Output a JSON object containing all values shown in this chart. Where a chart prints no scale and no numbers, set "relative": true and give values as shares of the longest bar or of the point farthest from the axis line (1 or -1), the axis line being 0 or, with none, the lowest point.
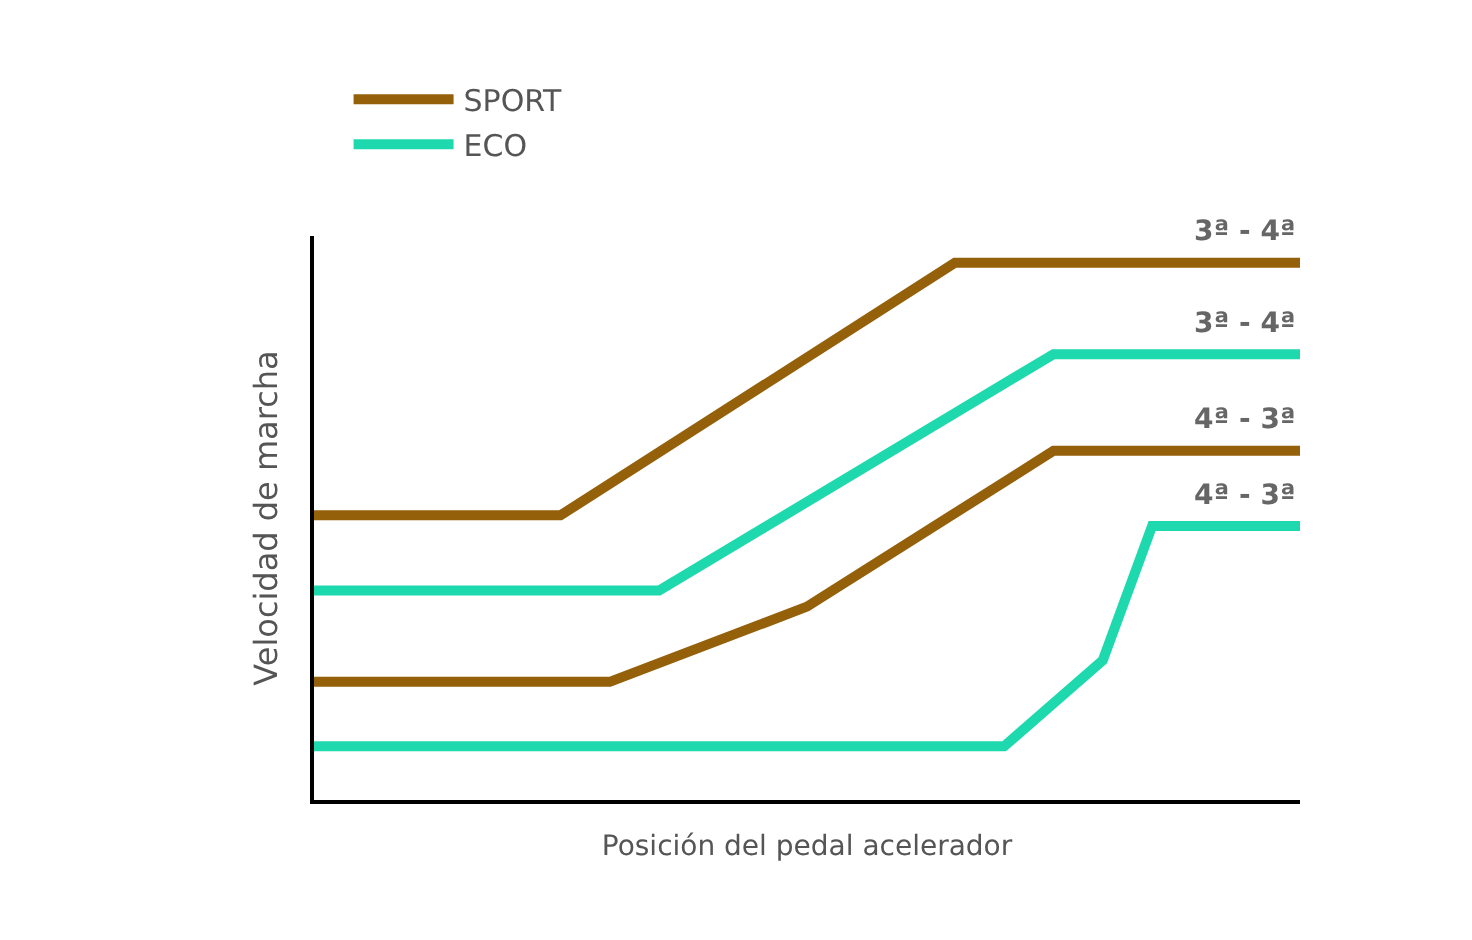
{
  "chart_data": {
    "type": "line",
    "relative": true,
    "xlabel": "Posición del pedal acelerador",
    "ylabel": "Velocidad de marcha",
    "grid": false,
    "legend": "top left",
    "marker": "none",
    "line_style": "solid",
    "categories": [
      null,
      null,
      null,
      null,
      null,
      null,
      null,
      null,
      null,
      null,
      null,
      null,
      null,
      null,
      null,
      null,
      null,
      null,
      null,
      null,
      null
    ],
    "series": [
      {
        "name": "SPORT",
        "color": "#946009",
        "values": [
          0.53,
          null,
          null,
          null,
          null,
          0.53,
          null,
          null,
          null,
          null,
          null,
          null,
          null,
          1,
          null,
          null,
          null,
          null,
          null,
          null,
          1
        ]
      },
      {
        "name": "ECO",
        "color": "#1fd9ae",
        "values": [
          0.39,
          null,
          null,
          null,
          null,
          null,
          null,
          0.39,
          null,
          null,
          null,
          null,
          null,
          null,
          null,
          0.83,
          null,
          null,
          null,
          null,
          0.83
        ]
      },
      {
        "color": "#946009",
        "values": [
          0.22,
          null,
          null,
          null,
          null,
          null,
          0.22,
          null,
          null,
          null,
          0.36,
          null,
          null,
          null,
          null,
          0.65,
          null,
          null,
          null,
          null,
          0.65
        ]
      },
      {
        "color": "#1fd9ae",
        "values": [
          0.1,
          null,
          null,
          null,
          null,
          null,
          null,
          null,
          null,
          null,
          null,
          null,
          null,
          null,
          0.1,
          null,
          0.26,
          0.51,
          null,
          null,
          0.51
        ]
      }
    ],
    "annotations": [
      {
        "text": "3ª - 4ª",
        "y": 1
      },
      {
        "text": "3ª - 4ª",
        "y": 0.83
      },
      {
        "text": "4ª - 3ª",
        "y": 0.65
      },
      {
        "text": "4ª - 3ª",
        "y": 0.51
      }
    ]
  }
}
